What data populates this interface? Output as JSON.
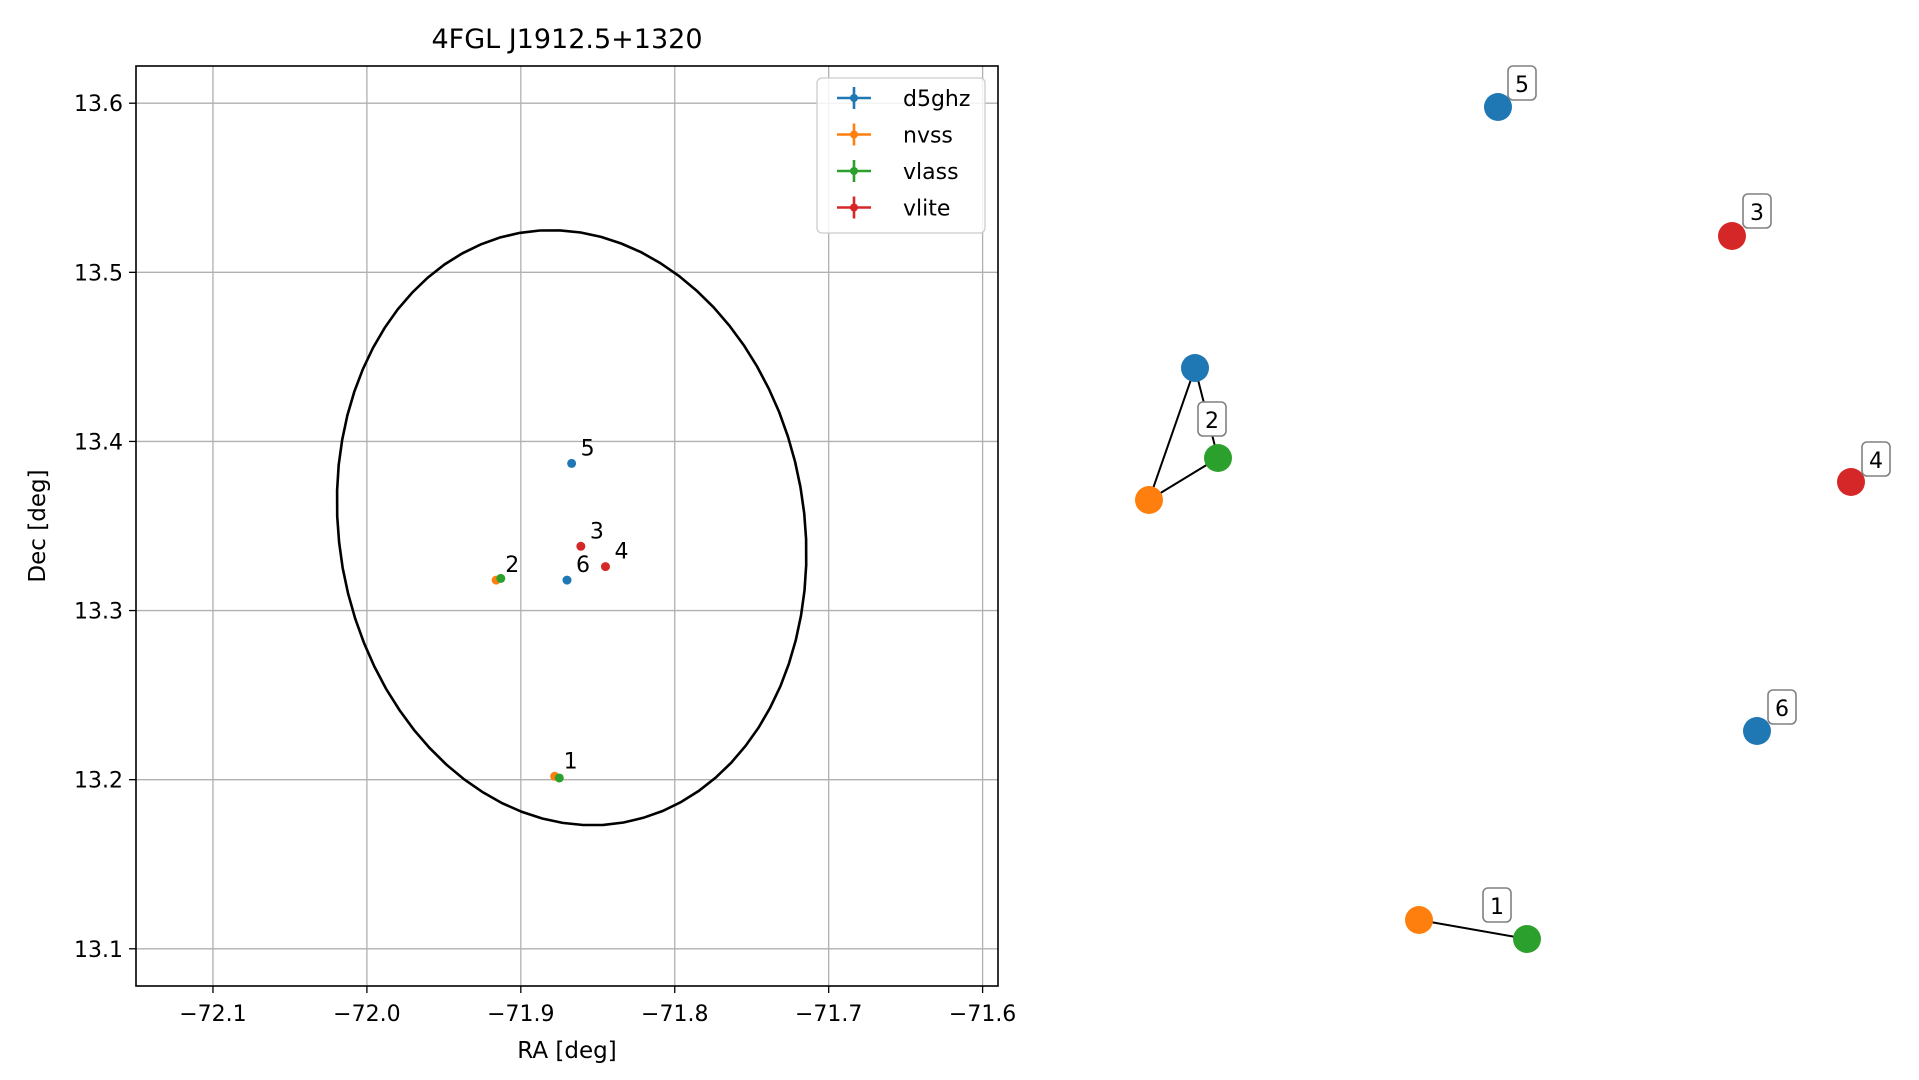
{
  "chart_data": [
    {
      "type": "scatter",
      "title": "4FGL J1912.5+1320",
      "xlabel": "RA [deg]",
      "ylabel": "Dec [deg]",
      "xlim": [
        -72.15,
        -71.59
      ],
      "ylim": [
        13.078,
        13.622
      ],
      "x_ticks": [
        -72.1,
        -72.0,
        -71.9,
        -71.8,
        -71.7,
        -71.6
      ],
      "x_tick_labels": [
        "−72.1",
        "−72.0",
        "−71.9",
        "−71.8",
        "−71.7",
        "−71.6"
      ],
      "y_ticks": [
        13.1,
        13.2,
        13.3,
        13.4,
        13.5,
        13.6
      ],
      "y_tick_labels": [
        "13.1",
        "13.2",
        "13.3",
        "13.4",
        "13.5",
        "13.6"
      ],
      "grid": true,
      "legend_position": "top-right",
      "series": [
        {
          "name": "d5ghz",
          "color": "#1f77b4",
          "points": [
            {
              "x": -71.867,
              "y": 13.387,
              "label": "5"
            },
            {
              "x": -71.87,
              "y": 13.318,
              "label": "6"
            }
          ]
        },
        {
          "name": "nvss",
          "color": "#ff7f0e",
          "points": [
            {
              "x": -71.916,
              "y": 13.318,
              "label": "2"
            },
            {
              "x": -71.878,
              "y": 13.202,
              "label": "1"
            }
          ]
        },
        {
          "name": "vlass",
          "color": "#2ca02c",
          "points": [
            {
              "x": -71.913,
              "y": 13.319,
              "label": ""
            },
            {
              "x": -71.875,
              "y": 13.201,
              "label": ""
            }
          ]
        },
        {
          "name": "vlite",
          "color": "#d62728",
          "points": [
            {
              "x": -71.861,
              "y": 13.338,
              "label": "3"
            },
            {
              "x": -71.845,
              "y": 13.326,
              "label": "4"
            }
          ]
        }
      ],
      "ellipse": {
        "center_x": -71.867,
        "center_y": 13.349,
        "semi_axis_ra": 0.151,
        "semi_axis_dec": 0.177,
        "angle_deg": -10,
        "color": "#000000"
      }
    },
    {
      "type": "graph",
      "nodes": [
        {
          "id": "5",
          "color": "#1f77b4",
          "label": "5"
        },
        {
          "id": "3",
          "color": "#d62728",
          "label": "3"
        },
        {
          "id": "2d",
          "color": "#1f77b4",
          "label": ""
        },
        {
          "id": "2v",
          "color": "#2ca02c",
          "label": "2"
        },
        {
          "id": "2n",
          "color": "#ff7f0e",
          "label": ""
        },
        {
          "id": "4",
          "color": "#d62728",
          "label": "4"
        },
        {
          "id": "6",
          "color": "#1f77b4",
          "label": "6"
        },
        {
          "id": "1n",
          "color": "#ff7f0e",
          "label": ""
        },
        {
          "id": "1v",
          "color": "#2ca02c",
          "label": "1"
        }
      ],
      "edges": [
        [
          "2d",
          "2v"
        ],
        [
          "2d",
          "2n"
        ],
        [
          "2n",
          "2v"
        ],
        [
          "1n",
          "1v"
        ]
      ]
    }
  ]
}
